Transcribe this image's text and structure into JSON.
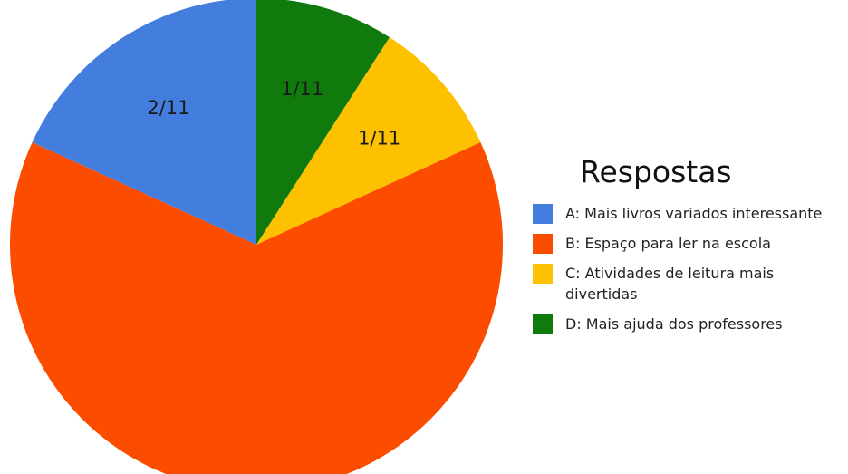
{
  "chart_data": {
    "type": "pie",
    "title": "Respostas",
    "start_angle_deg": 0,
    "direction": "clockwise",
    "slices": [
      {
        "label": "D: Mais ajuda dos professores",
        "value": 1,
        "display": "1/11",
        "color": "#107a0d"
      },
      {
        "label": "C: Atividades de leitura mais divertidas",
        "value": 1,
        "display": "1/11",
        "color": "#fdc100"
      },
      {
        "label": "B: Espaço para ler na escola",
        "value": 7,
        "display": "",
        "color": "#fc4c00"
      },
      {
        "label": "A: Mais livros variados interessante",
        "value": 2,
        "display": "2/11",
        "color": "#437ede"
      }
    ],
    "legend_order": [
      "A",
      "B",
      "C",
      "D"
    ],
    "legend_placement": "right"
  },
  "legend": {
    "title": "Respostas",
    "items": [
      {
        "text": "A: Mais livros variados interessante",
        "color": "#437ede"
      },
      {
        "text": "B: Espaço para ler na escola",
        "color": "#fc4c00"
      },
      {
        "text": "C: Atividades de leitura mais divertidas",
        "color": "#fdc100"
      },
      {
        "text": "D: Mais ajuda dos professores",
        "color": "#107a0d"
      }
    ]
  }
}
